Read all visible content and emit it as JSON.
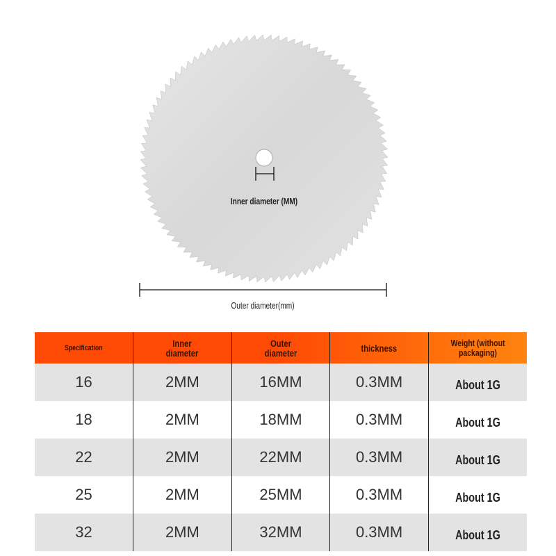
{
  "diagram": {
    "inner_label": "Inner diameter (MM)",
    "outer_label": "Outer diameter(mm)",
    "blade_color": "#dcdcdc"
  },
  "table": {
    "header_color": "#ff4a05",
    "headers": [
      "Specification",
      "Inner diameter",
      "Outer diameter",
      "thickness",
      "Weight (without packaging)"
    ],
    "rows": [
      [
        "16",
        "2MM",
        "16MM",
        "0.3MM",
        "About 1G"
      ],
      [
        "18",
        "2MM",
        "18MM",
        "0.3MM",
        "About 1G"
      ],
      [
        "22",
        "2MM",
        "22MM",
        "0.3MM",
        "About 1G"
      ],
      [
        "25",
        "2MM",
        "25MM",
        "0.3MM",
        "About 1G"
      ],
      [
        "32",
        "2MM",
        "32MM",
        "0.3MM",
        "About 1G"
      ]
    ]
  }
}
